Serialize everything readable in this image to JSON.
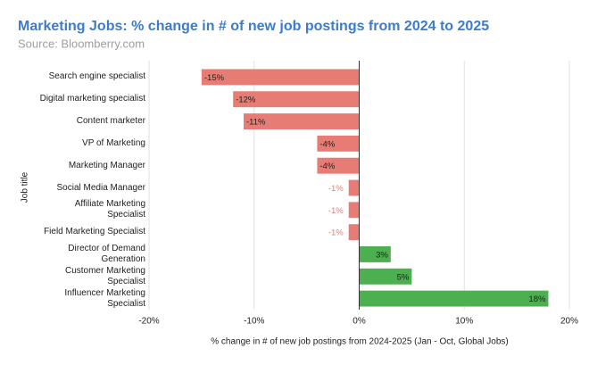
{
  "chart_data": {
    "type": "hbar",
    "title": "Marketing Jobs: % change in # of new job postings from 2024 to 2025",
    "subtitle": "Source: Bloomberry.com",
    "y_label": "Job title",
    "x_label": "% change in # of new job postings from 2024-2025 (Jan - Oct, Global Jobs)",
    "categories": [
      "Search engine specialist",
      "Digital marketing specialist",
      "Content marketer",
      "VP of Marketing",
      "Marketing Manager",
      "Social Media Manager",
      "Affiliate Marketing Specialist",
      "Field Marketing Specialist",
      "Director of Demand Generation",
      "Customer Marketing Specialist",
      "Influencer Marketing Specialist"
    ],
    "values": [
      -15,
      -12,
      -11,
      -4,
      -4,
      -1,
      -1,
      -1,
      3,
      5,
      18
    ],
    "value_labels": [
      "-15%",
      "-12%",
      "-11%",
      "-4%",
      "-4%",
      "-1%",
      "-1%",
      "-1%",
      "3%",
      "5%",
      "18%"
    ],
    "colors": [
      "#e67c73",
      "#e67c73",
      "#e67c73",
      "#e67c73",
      "#e67c73",
      "#e67c73",
      "#e67c73",
      "#e67c73",
      "#4caf50",
      "#4caf50",
      "#4caf50"
    ],
    "xlim": [
      -20,
      20
    ],
    "xticks": [
      {
        "value": -20,
        "label": "-20%"
      },
      {
        "value": -10,
        "label": "-10%"
      },
      {
        "value": 0,
        "label": "0%"
      },
      {
        "value": 10,
        "label": "10%"
      },
      {
        "value": 20,
        "label": "20%"
      }
    ],
    "grid": true
  }
}
